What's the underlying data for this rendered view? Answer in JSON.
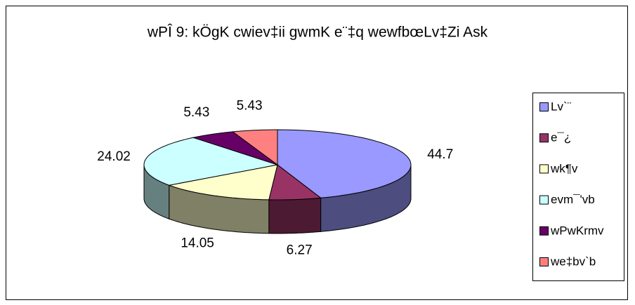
{
  "chart_data": {
    "type": "pie3d",
    "title": "wPÎ 9: kÖgK cwiev‡ii gwmK e¨‡q wewfbœLv‡Zi Ask",
    "categories": [
      "Lv`¨",
      "e¯¿",
      "wk¶v",
      "evm¯'vb",
      "wPwKrmv",
      "we‡bv`b"
    ],
    "values": [
      44.7,
      6.27,
      14.05,
      24.02,
      5.43,
      5.43
    ],
    "colors": [
      "#9999ff",
      "#993366",
      "#ffffcc",
      "#ccffff",
      "#660066",
      "#ff8080"
    ],
    "legend": "right"
  }
}
